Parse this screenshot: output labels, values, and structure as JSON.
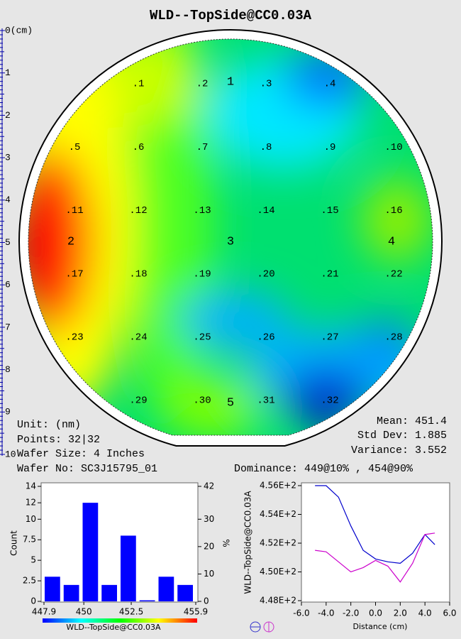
{
  "title": "WLD--TopSide@CC0.03A",
  "wafer": {
    "ruler": [
      "0(cm)",
      "1",
      "2",
      "3",
      "4",
      "5",
      "6",
      "7",
      "8",
      "9",
      "10"
    ],
    "site_labels": [
      "1",
      "2",
      "3",
      "4",
      "5"
    ],
    "point_labels": [
      ".1",
      ".2",
      ".3",
      ".4",
      ".5",
      ".6",
      ".7",
      ".8",
      ".9",
      ".10",
      ".11",
      ".12",
      ".13",
      ".14",
      ".15",
      ".16",
      ".17",
      ".18",
      ".19",
      ".20",
      ".21",
      ".22",
      ".23",
      ".24",
      ".25",
      ".26",
      ".27",
      ".28",
      ".29",
      ".30",
      ".31",
      ".32"
    ]
  },
  "info": {
    "unit": "Unit: (nm)",
    "points": "Points: 32|32",
    "wafer_size": "Wafer Size: 4 Inches",
    "wafer_no": "Wafer No: SC3J15795_01",
    "mean": "Mean: 451.4",
    "std_dev": "Std Dev: 1.885",
    "variance": "Variance: 3.552",
    "dominance": "Dominance: 449@10% , 454@90%"
  },
  "chart_data": [
    {
      "type": "histogram",
      "x_label": "WLD--TopSide@CC0.03A",
      "y_label": "Count",
      "y2_label": "%",
      "bins": [
        447.9,
        448.9,
        449.9,
        450.9,
        451.9,
        452.9,
        453.9,
        454.9,
        455.9
      ],
      "values": [
        3,
        2,
        12,
        2,
        8,
        0,
        3,
        2
      ],
      "color": "#0000ff",
      "xlim": [
        447.9,
        455.9
      ],
      "xticks": [
        447.9,
        450,
        452.5,
        455.9
      ],
      "ylim": [
        0,
        14
      ],
      "yticks": [
        0,
        2.5,
        5,
        7.5,
        10,
        12,
        14
      ],
      "y2lim": [
        0,
        42
      ],
      "y2ticks": [
        0,
        10,
        20,
        30,
        42
      ]
    },
    {
      "type": "line",
      "x_label": "Distance (cm)",
      "y_label": "WLD--TopSide@CC0.03A",
      "xlim": [
        -6,
        6
      ],
      "xticks": [
        {
          "value": -6,
          "label": "-6.0"
        },
        {
          "value": -4,
          "label": "-4.0"
        },
        {
          "value": -2,
          "label": "-2.0"
        },
        {
          "value": 0,
          "label": "0.0"
        },
        {
          "value": 2,
          "label": "2.0"
        },
        {
          "value": 4,
          "label": "4.0"
        },
        {
          "value": 6,
          "label": "6.0"
        }
      ],
      "ylim": [
        448,
        456
      ],
      "yticks": [
        {
          "value": 448,
          "label": "4.48E+2"
        },
        {
          "value": 450,
          "label": "4.50E+2"
        },
        {
          "value": 452,
          "label": "4.52E+2"
        },
        {
          "value": 454,
          "label": "4.54E+2"
        },
        {
          "value": 456,
          "label": "4.56E+2"
        }
      ],
      "x": [
        -4.9,
        -4,
        -3,
        -2,
        -1,
        0,
        1,
        2,
        3,
        4,
        4.8
      ],
      "series": [
        {
          "color": "#0000cc",
          "values": [
            456,
            456,
            455.2,
            453.2,
            451.5,
            450.9,
            450.7,
            450.6,
            451.3,
            452.6,
            451.9
          ]
        },
        {
          "color": "#cc00cc",
          "values": [
            451.5,
            451.4,
            450.7,
            450.0,
            450.3,
            450.8,
            450.4,
            449.3,
            450.6,
            452.6,
            452.7
          ]
        }
      ]
    }
  ]
}
